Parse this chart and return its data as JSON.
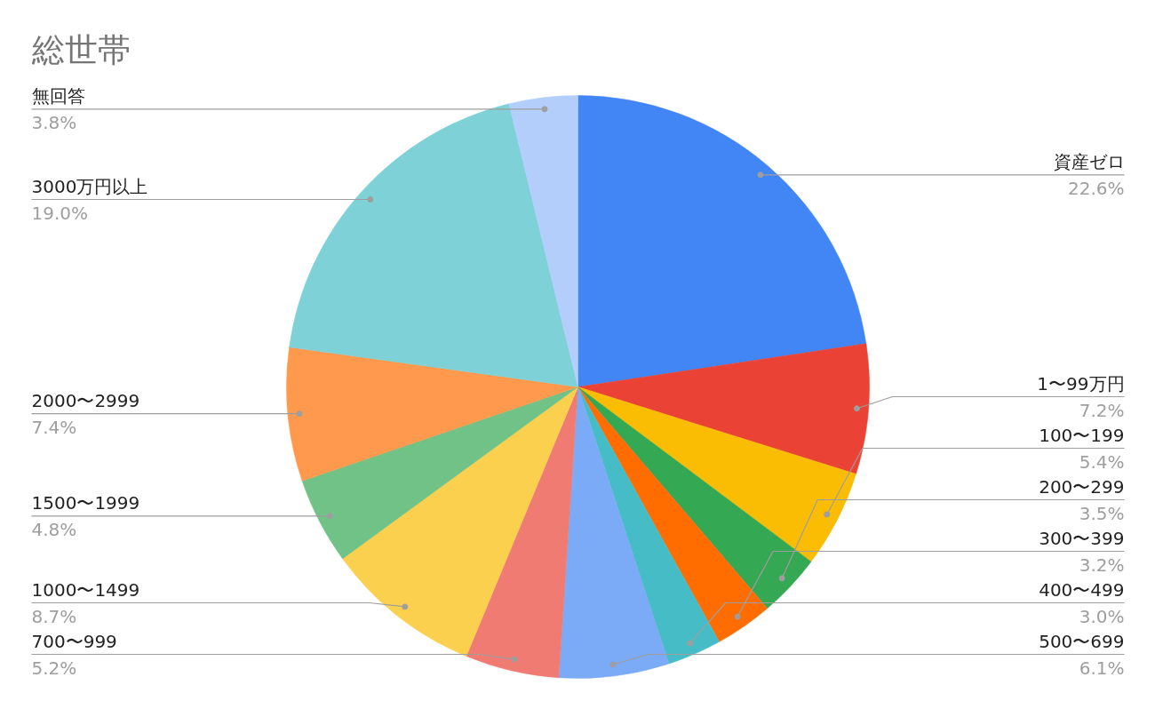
{
  "chart_data": {
    "type": "pie",
    "title": "総世帯",
    "categories": [
      "資産ゼロ",
      "1〜99万円",
      "100〜199",
      "200〜299",
      "300〜399",
      "400〜499",
      "500〜699",
      "700〜999",
      "1000〜1499",
      "1500〜1999",
      "2000〜2999",
      "3000万円以上",
      "無回答"
    ],
    "values": [
      22.6,
      7.2,
      5.4,
      3.5,
      3.2,
      3.0,
      6.1,
      5.2,
      8.7,
      4.8,
      7.4,
      19.0,
      3.8
    ],
    "colors": [
      "#4285f4",
      "#ea4335",
      "#fbbc04",
      "#34a853",
      "#ff6d01",
      "#46bdc6",
      "#7baaf7",
      "#f07b72",
      "#fcd04f",
      "#71c287",
      "#ff994d",
      "#7ed1d7",
      "#b3cefb"
    ],
    "value_labels": [
      "22.6%",
      "7.2%",
      "5.4%",
      "3.5%",
      "3.2%",
      "3.0%",
      "6.1%",
      "5.2%",
      "8.7%",
      "4.8%",
      "7.4%",
      "19.0%",
      "3.8%"
    ]
  }
}
